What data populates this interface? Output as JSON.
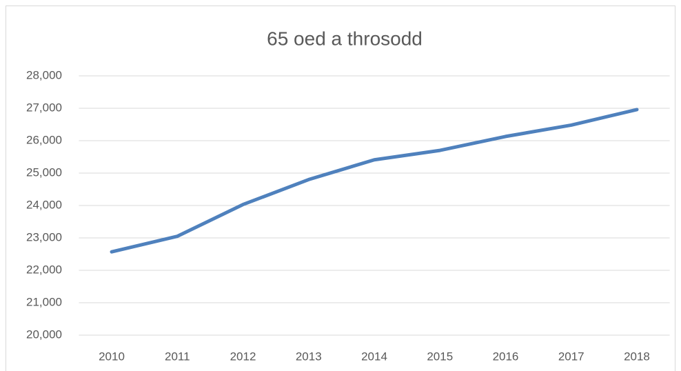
{
  "chart_data": {
    "type": "line",
    "title": "65 oed a throsodd",
    "categories": [
      "2010",
      "2011",
      "2012",
      "2013",
      "2014",
      "2015",
      "2016",
      "2017",
      "2018"
    ],
    "series": [
      {
        "name": "65 oed a throsodd",
        "color": "#4f81bd",
        "values": [
          22570,
          23050,
          24030,
          24800,
          25410,
          25700,
          26130,
          26480,
          26960
        ]
      }
    ],
    "ylim": [
      20000,
      28000
    ],
    "yticks": [
      {
        "value": 20000,
        "label": "20,000"
      },
      {
        "value": 21000,
        "label": "21,000"
      },
      {
        "value": 22000,
        "label": "22,000"
      },
      {
        "value": 23000,
        "label": "23,000"
      },
      {
        "value": 24000,
        "label": "24,000"
      },
      {
        "value": 25000,
        "label": "25,000"
      },
      {
        "value": 26000,
        "label": "26,000"
      },
      {
        "value": 27000,
        "label": "27,000"
      },
      {
        "value": 28000,
        "label": "28,000"
      }
    ],
    "grid": true
  }
}
